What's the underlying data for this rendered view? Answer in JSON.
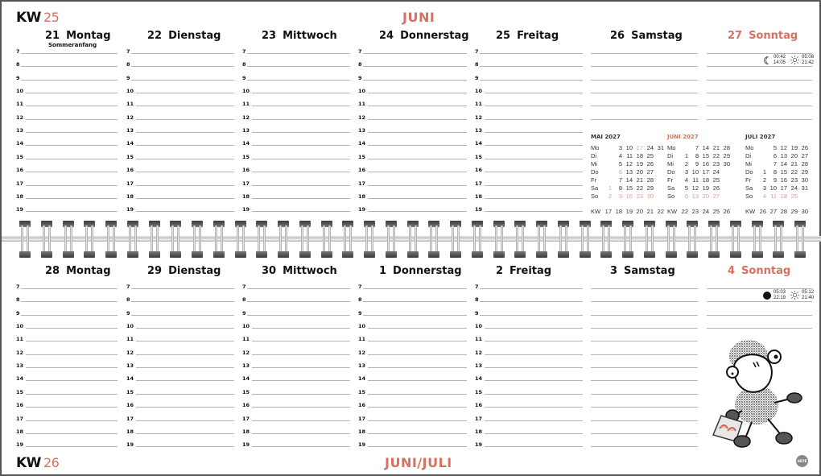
{
  "top": {
    "kw_label": "KW",
    "kw_number": "25",
    "month": "JUNI",
    "days": [
      {
        "num": "21",
        "name": "Montag",
        "holiday": "Sommeranfang",
        "hours": true,
        "red": false
      },
      {
        "num": "22",
        "name": "Dienstag",
        "hours": true,
        "red": false
      },
      {
        "num": "23",
        "name": "Mittwoch",
        "hours": true,
        "red": false
      },
      {
        "num": "24",
        "name": "Donnerstag",
        "hours": true,
        "red": false
      },
      {
        "num": "25",
        "name": "Freitag",
        "hours": true,
        "red": false
      },
      {
        "num": "26",
        "name": "Samstag",
        "hours": false,
        "red": false
      },
      {
        "num": "27",
        "name": "Sonntag",
        "hours": false,
        "red": true
      }
    ],
    "astro": {
      "moon_icon": "moon-crescent-icon",
      "moon_rise": "00:42",
      "moon_set": "14:05",
      "sun_icon": "sun-icon",
      "sun_rise": "05:08",
      "sun_set": "21:42"
    }
  },
  "bottom": {
    "kw_label": "KW",
    "kw_number": "26",
    "month": "JUNI/JULI",
    "days": [
      {
        "num": "28",
        "name": "Montag",
        "hours": true,
        "red": false
      },
      {
        "num": "29",
        "name": "Dienstag",
        "hours": true,
        "red": false
      },
      {
        "num": "30",
        "name": "Mittwoch",
        "hours": true,
        "red": false
      },
      {
        "num": "1",
        "name": "Donnerstag",
        "hours": true,
        "red": false
      },
      {
        "num": "2",
        "name": "Freitag",
        "hours": true,
        "red": false
      },
      {
        "num": "3",
        "name": "Samstag",
        "hours": false,
        "red": false
      },
      {
        "num": "4",
        "name": "Sonntag",
        "hours": false,
        "red": true
      }
    ],
    "astro": {
      "moon_icon": "full-moon-icon",
      "moon_rise": "05:03",
      "moon_set": "22:19",
      "sun_icon": "sun-icon",
      "sun_rise": "05:12",
      "sun_set": "21:40"
    }
  },
  "hours": [
    "7",
    "8",
    "9",
    "10",
    "11",
    "12",
    "13",
    "14",
    "15",
    "16",
    "17",
    "18",
    "19"
  ],
  "mini_calendars": [
    {
      "title": "MAI 2027",
      "red": false,
      "rows": [
        {
          "label": "Mo",
          "cells": [
            "",
            "3",
            "10",
            "17",
            "24",
            "31"
          ]
        },
        {
          "label": "Di",
          "cells": [
            "",
            "4",
            "11",
            "18",
            "25",
            ""
          ]
        },
        {
          "label": "Mi",
          "cells": [
            "",
            "5",
            "12",
            "19",
            "26",
            ""
          ]
        },
        {
          "label": "Do",
          "cells": [
            "",
            "6",
            "13",
            "20",
            "27",
            ""
          ]
        },
        {
          "label": "Fr",
          "cells": [
            "",
            "7",
            "14",
            "21",
            "28",
            ""
          ]
        },
        {
          "label": "Sa",
          "cells": [
            "1",
            "8",
            "15",
            "22",
            "29",
            ""
          ]
        },
        {
          "label": "So",
          "cells": [
            "2",
            "9",
            "16",
            "23",
            "30",
            ""
          ]
        }
      ],
      "highlight": [
        [
          0,
          3
        ],
        [
          3,
          1
        ],
        [
          5,
          0
        ],
        [
          6,
          0
        ],
        [
          6,
          1
        ],
        [
          6,
          2
        ],
        [
          6,
          3
        ],
        [
          6,
          4
        ]
      ],
      "kw": [
        "17",
        "18",
        "19",
        "20",
        "21",
        "22"
      ]
    },
    {
      "title": "JUNI 2027",
      "red": true,
      "rows": [
        {
          "label": "Mo",
          "cells": [
            "",
            "7",
            "14",
            "21",
            "28"
          ]
        },
        {
          "label": "Di",
          "cells": [
            "1",
            "8",
            "15",
            "22",
            "29"
          ]
        },
        {
          "label": "Mi",
          "cells": [
            "2",
            "9",
            "16",
            "23",
            "30"
          ]
        },
        {
          "label": "Do",
          "cells": [
            "3",
            "10",
            "17",
            "24",
            ""
          ]
        },
        {
          "label": "Fr",
          "cells": [
            "4",
            "11",
            "18",
            "25",
            ""
          ]
        },
        {
          "label": "Sa",
          "cells": [
            "5",
            "12",
            "19",
            "26",
            ""
          ]
        },
        {
          "label": "So",
          "cells": [
            "6",
            "13",
            "20",
            "27",
            ""
          ]
        }
      ],
      "highlight": [
        [
          6,
          0
        ],
        [
          6,
          1
        ],
        [
          6,
          2
        ],
        [
          6,
          3
        ]
      ],
      "kw": [
        "22",
        "23",
        "24",
        "25",
        "26"
      ]
    },
    {
      "title": "JULI 2027",
      "red": false,
      "rows": [
        {
          "label": "Mo",
          "cells": [
            "",
            "5",
            "12",
            "19",
            "26"
          ]
        },
        {
          "label": "Di",
          "cells": [
            "",
            "6",
            "13",
            "20",
            "27"
          ]
        },
        {
          "label": "Mi",
          "cells": [
            "",
            "7",
            "14",
            "21",
            "28"
          ]
        },
        {
          "label": "Do",
          "cells": [
            "1",
            "8",
            "15",
            "22",
            "29"
          ]
        },
        {
          "label": "Fr",
          "cells": [
            "2",
            "9",
            "16",
            "23",
            "30"
          ]
        },
        {
          "label": "Sa",
          "cells": [
            "3",
            "10",
            "17",
            "24",
            "31"
          ]
        },
        {
          "label": "So",
          "cells": [
            "4",
            "11",
            "18",
            "25",
            ""
          ]
        }
      ],
      "highlight": [
        [
          6,
          0
        ],
        [
          6,
          1
        ],
        [
          6,
          2
        ],
        [
          6,
          3
        ]
      ],
      "kw": [
        "26",
        "27",
        "28",
        "29",
        "30"
      ]
    }
  ],
  "kw_label": "KW",
  "illustration": "sheep-shopping-illustration",
  "logo": "HEYE",
  "colors": {
    "accent": "#d9705f",
    "line": "#b4b4b4",
    "text": "#111111"
  }
}
